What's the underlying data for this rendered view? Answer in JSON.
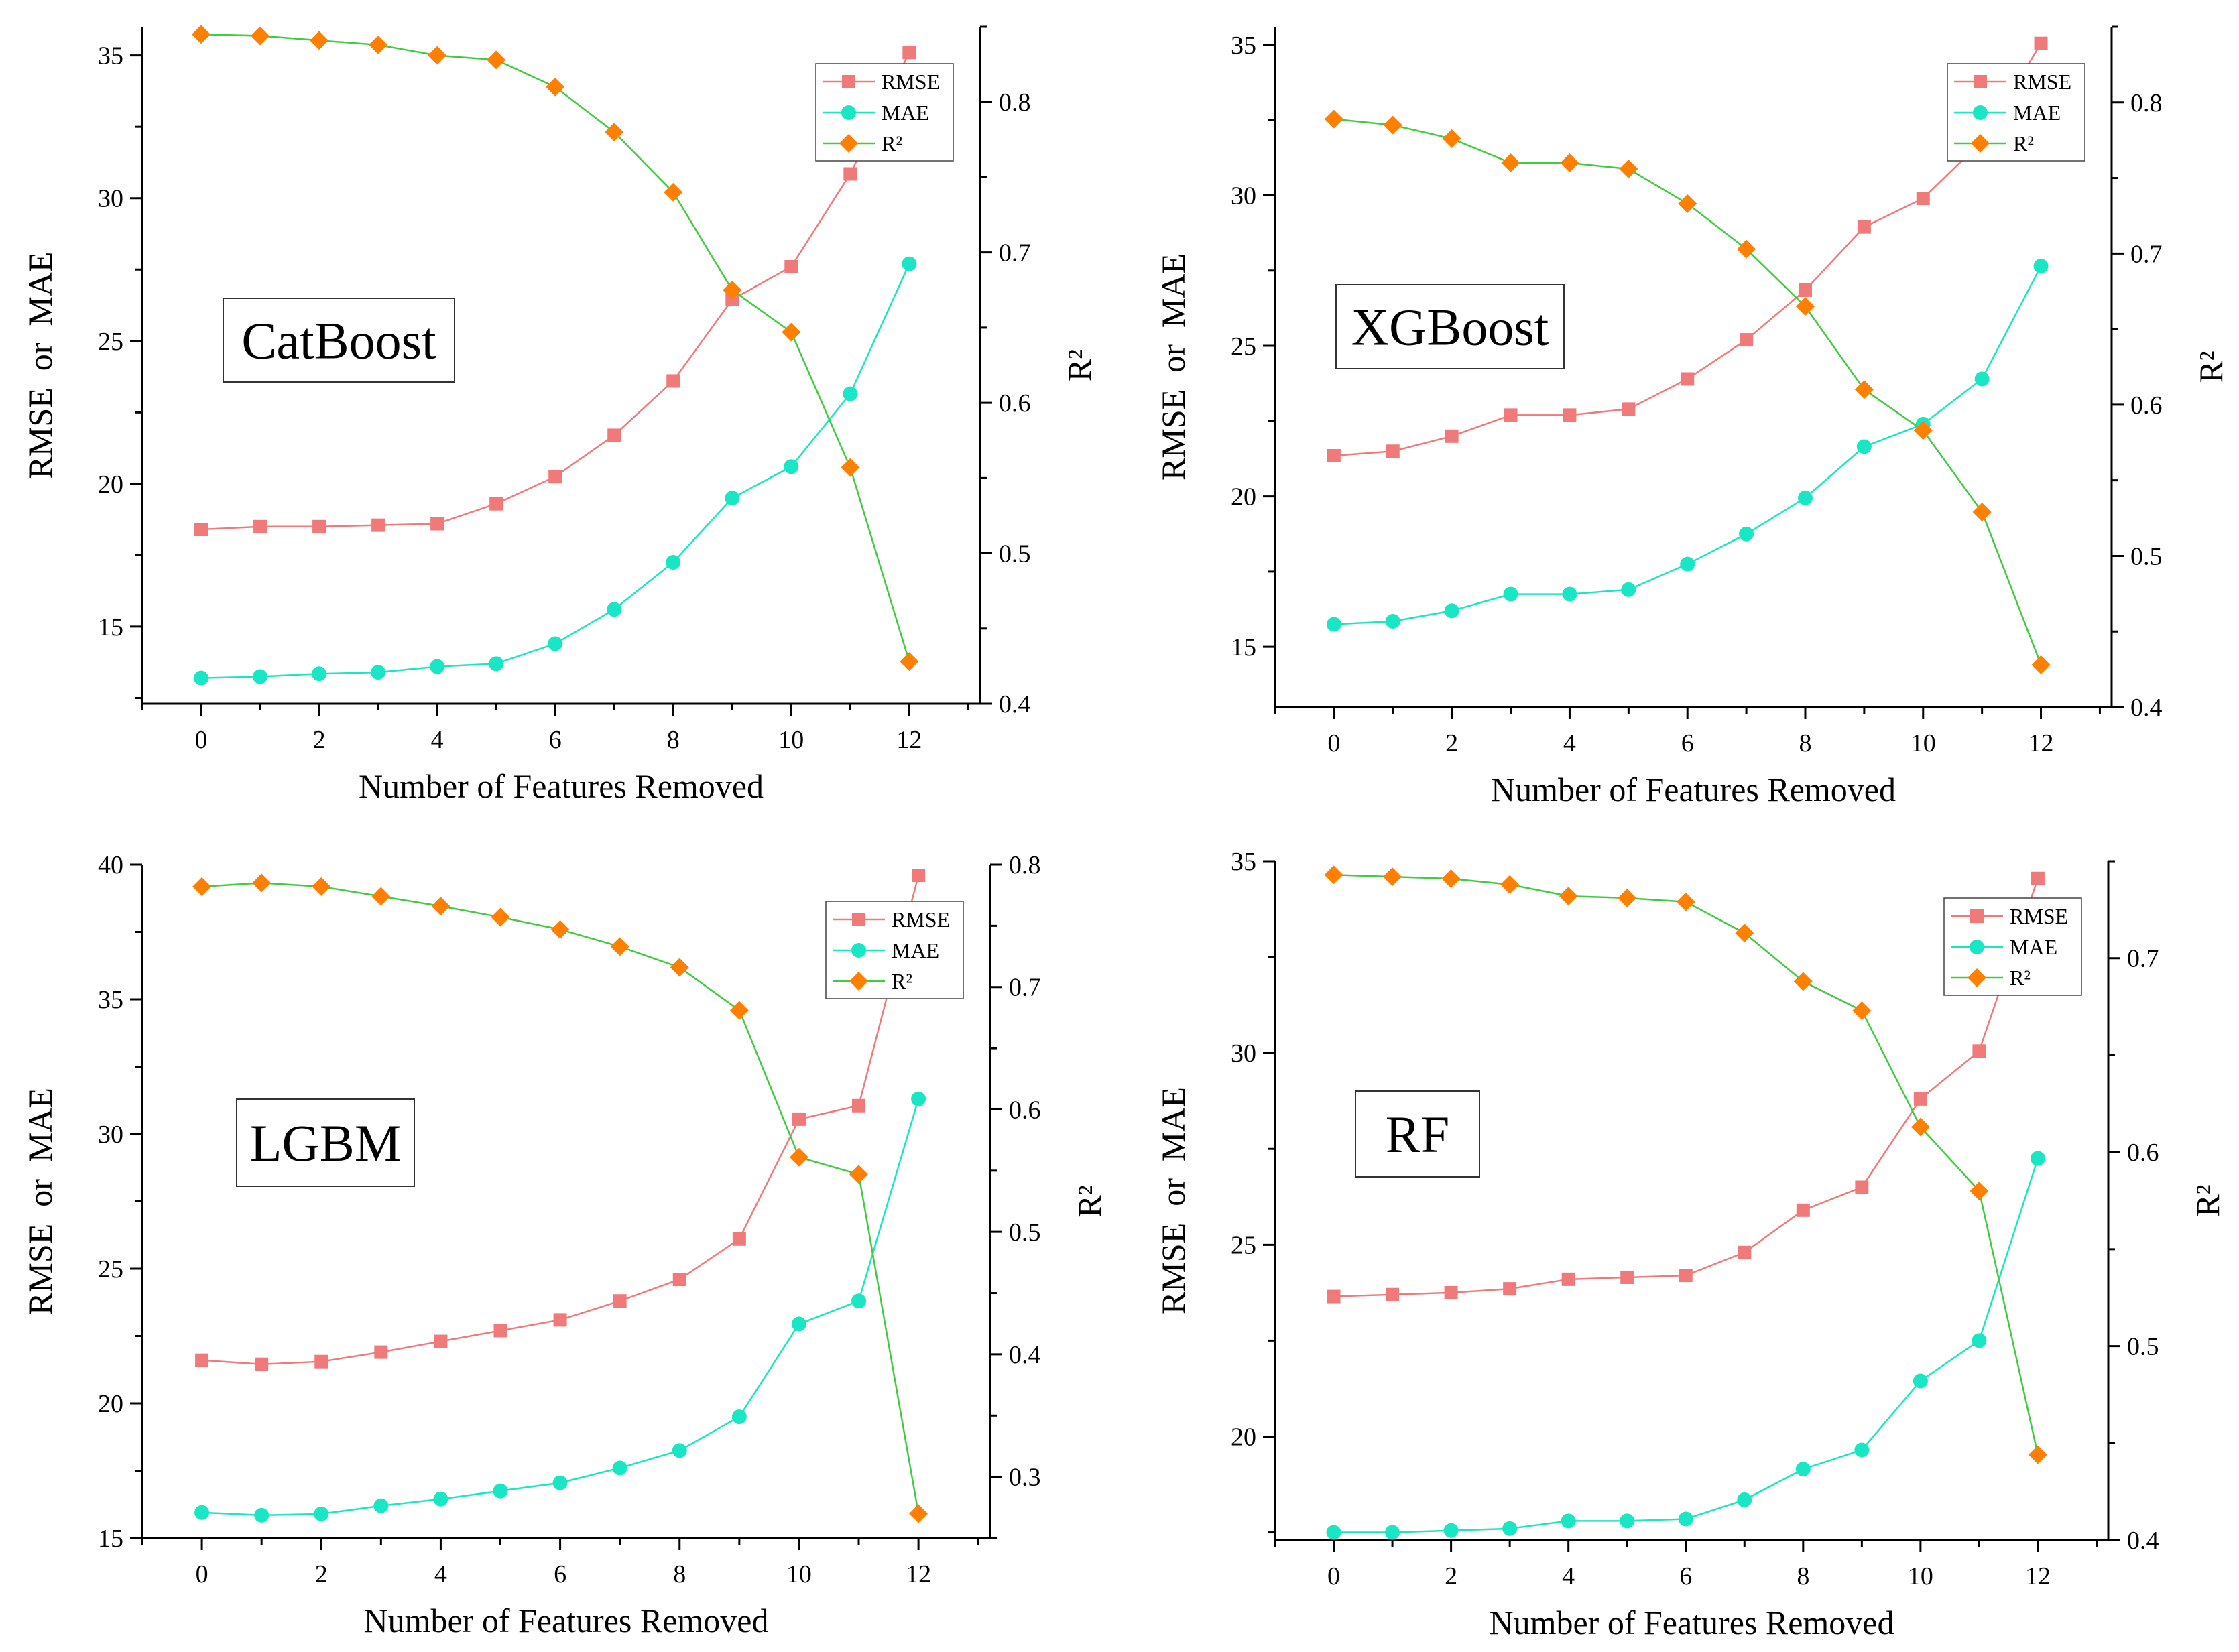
{
  "chart_data": [
    {
      "type": "line",
      "model_label": "CatBoost",
      "xlabel": "Number of Features Removed",
      "ylabel": "RMSE  or  MAE",
      "y2label": "R²",
      "x": [
        0,
        1,
        2,
        3,
        4,
        5,
        6,
        7,
        8,
        9,
        10,
        11,
        12
      ],
      "xticks": [
        0,
        2,
        4,
        6,
        8,
        10,
        12
      ],
      "xlim": [
        -1,
        13.2
      ],
      "ylim": [
        12.3,
        36.0
      ],
      "yticks": [
        15,
        20,
        25,
        30,
        35
      ],
      "y2lim": [
        0.4,
        0.85
      ],
      "y2ticks": [
        0.4,
        0.5,
        0.6,
        0.7,
        0.8
      ],
      "legend": "top-right",
      "series": [
        {
          "name": "RMSE",
          "axis": "left",
          "color": "#f07a7a",
          "marker": "square",
          "values": [
            18.4,
            18.5,
            18.5,
            18.55,
            18.6,
            19.3,
            20.25,
            21.7,
            23.6,
            26.45,
            27.6,
            30.85,
            35.1
          ]
        },
        {
          "name": "MAE",
          "axis": "left",
          "color": "#19e6c4",
          "marker": "circle",
          "values": [
            13.2,
            13.25,
            13.35,
            13.4,
            13.6,
            13.7,
            14.4,
            15.6,
            17.25,
            19.5,
            20.6,
            23.15,
            27.7
          ]
        },
        {
          "name": "R²",
          "axis": "right",
          "color": "#ff8000",
          "line_color": "#40cc40",
          "marker": "diamond",
          "values": [
            0.845,
            0.844,
            0.841,
            0.838,
            0.831,
            0.828,
            0.81,
            0.78,
            0.74,
            0.675,
            0.647,
            0.557,
            0.428
          ]
        }
      ]
    },
    {
      "type": "line",
      "model_label": "XGBoost",
      "xlabel": "Number of Features Removed",
      "ylabel": "RMSE  or  MAE",
      "y2label": "R²",
      "x": [
        0,
        1,
        2,
        3,
        4,
        5,
        6,
        7,
        8,
        9,
        10,
        11,
        12
      ],
      "xticks": [
        0,
        2,
        4,
        6,
        8,
        10,
        12
      ],
      "xlim": [
        -1,
        13.2
      ],
      "ylim": [
        13.0,
        35.6
      ],
      "yticks": [
        15,
        20,
        25,
        30,
        35
      ],
      "y2lim": [
        0.4,
        0.85
      ],
      "y2ticks": [
        0.4,
        0.5,
        0.6,
        0.7,
        0.8
      ],
      "legend": "top-right",
      "series": [
        {
          "name": "RMSE",
          "axis": "left",
          "color": "#f07a7a",
          "marker": "square",
          "values": [
            21.35,
            21.5,
            22.0,
            22.7,
            22.7,
            22.9,
            23.9,
            25.2,
            26.85,
            28.95,
            29.9,
            31.8,
            35.05
          ]
        },
        {
          "name": "MAE",
          "axis": "left",
          "color": "#19e6c4",
          "marker": "circle",
          "values": [
            15.75,
            15.85,
            16.2,
            16.75,
            16.75,
            16.9,
            17.75,
            18.75,
            19.95,
            21.65,
            22.4,
            23.9,
            27.65
          ]
        },
        {
          "name": "R²",
          "axis": "right",
          "color": "#ff8000",
          "line_color": "#40cc40",
          "marker": "diamond",
          "values": [
            0.789,
            0.785,
            0.776,
            0.76,
            0.76,
            0.756,
            0.733,
            0.703,
            0.665,
            0.61,
            0.583,
            0.529,
            0.428
          ]
        }
      ]
    },
    {
      "type": "line",
      "model_label": "LGBM",
      "xlabel": "Number of Features Removed",
      "ylabel": "RMSE  or  MAE",
      "y2label": "R²",
      "x": [
        0,
        1,
        2,
        3,
        4,
        5,
        6,
        7,
        8,
        9,
        10,
        11,
        12
      ],
      "xticks": [
        0,
        2,
        4,
        6,
        8,
        10,
        12
      ],
      "xlim": [
        -1,
        13.2
      ],
      "ylim": [
        15.0,
        40.0
      ],
      "yticks": [
        15,
        20,
        25,
        30,
        35,
        40
      ],
      "y2lim": [
        0.25,
        0.8
      ],
      "y2ticks": [
        0.3,
        0.4,
        0.5,
        0.6,
        0.7,
        0.8
      ],
      "legend": "top-right",
      "series": [
        {
          "name": "RMSE",
          "axis": "left",
          "color": "#f07a7a",
          "marker": "square",
          "values": [
            21.6,
            21.45,
            21.55,
            21.9,
            22.3,
            22.7,
            23.1,
            23.8,
            24.6,
            26.1,
            30.55,
            31.05,
            39.6
          ]
        },
        {
          "name": "MAE",
          "axis": "left",
          "color": "#19e6c4",
          "marker": "circle",
          "values": [
            15.95,
            15.85,
            15.9,
            16.2,
            16.45,
            16.75,
            17.05,
            17.6,
            18.25,
            19.5,
            22.95,
            23.8,
            31.3
          ]
        },
        {
          "name": "R²",
          "axis": "right",
          "color": "#ff8000",
          "line_color": "#40cc40",
          "marker": "diamond",
          "values": [
            0.782,
            0.785,
            0.782,
            0.774,
            0.766,
            0.757,
            0.747,
            0.733,
            0.716,
            0.681,
            0.561,
            0.547,
            0.27
          ]
        }
      ]
    },
    {
      "type": "line",
      "model_label": "RF",
      "xlabel": "Number of Features Removed",
      "ylabel": "RMSE  or  MAE",
      "y2label": "R²",
      "x": [
        0,
        1,
        2,
        3,
        4,
        5,
        6,
        7,
        8,
        9,
        10,
        11,
        12
      ],
      "xticks": [
        0,
        2,
        4,
        6,
        8,
        10,
        12
      ],
      "xlim": [
        -1,
        13.2
      ],
      "ylim": [
        17.3,
        35.0
      ],
      "yticks": [
        20,
        25,
        30,
        35
      ],
      "y2lim": [
        0.4,
        0.75
      ],
      "y2ticks": [
        0.4,
        0.5,
        0.6,
        0.7
      ],
      "legend": "top-right",
      "series": [
        {
          "name": "RMSE",
          "axis": "left",
          "color": "#f07a7a",
          "marker": "square",
          "values": [
            23.65,
            23.7,
            23.75,
            23.85,
            24.1,
            24.15,
            24.2,
            24.8,
            25.9,
            26.5,
            28.8,
            30.05,
            34.55
          ]
        },
        {
          "name": "MAE",
          "axis": "left",
          "color": "#19e6c4",
          "marker": "circle",
          "values": [
            17.5,
            17.5,
            17.55,
            17.6,
            17.8,
            17.8,
            17.85,
            18.35,
            19.15,
            19.65,
            21.45,
            22.5,
            27.25
          ]
        },
        {
          "name": "R²",
          "axis": "right",
          "color": "#ff8000",
          "line_color": "#40cc40",
          "marker": "diamond",
          "values": [
            0.743,
            0.742,
            0.741,
            0.738,
            0.732,
            0.731,
            0.729,
            0.713,
            0.688,
            0.673,
            0.613,
            0.58,
            0.444
          ]
        }
      ]
    }
  ]
}
